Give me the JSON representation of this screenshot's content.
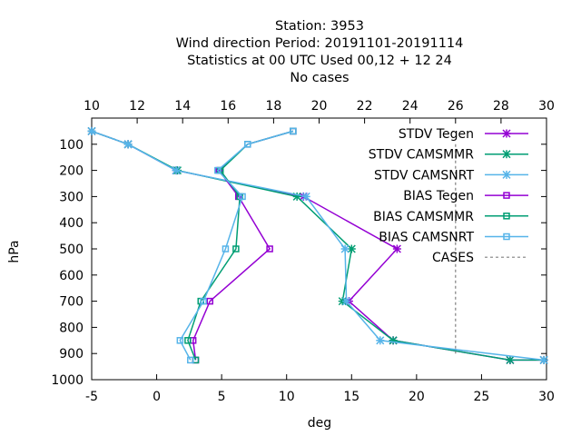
{
  "chart_data": {
    "type": "line",
    "title_lines": [
      "Station:     3953",
      "Wind direction  Period: 20191101-20191114",
      "Statistics at 00 UTC  Used  00,12  + 12 24",
      "No cases"
    ],
    "xlabel": "deg",
    "ylabel": "hPa",
    "xlim": [
      -5,
      30
    ],
    "ylim": [
      1000,
      0
    ],
    "x2lim": [
      10,
      30
    ],
    "x_ticks": [
      -5,
      0,
      5,
      10,
      15,
      20,
      25,
      30
    ],
    "x2_ticks": [
      10,
      12,
      14,
      16,
      18,
      20,
      22,
      24,
      26,
      28,
      30
    ],
    "y_ticks": [
      100,
      200,
      300,
      400,
      500,
      600,
      700,
      800,
      900,
      1000
    ],
    "grid": false,
    "legend_position": "top-right",
    "series": [
      {
        "name": "STDV Tegen",
        "color": "#9400d3",
        "marker": "star",
        "axis": "bottom",
        "points": [
          [
            -5.0,
            50
          ],
          [
            -2.2,
            100
          ],
          [
            1.5,
            200
          ],
          [
            11.3,
            300
          ],
          [
            18.5,
            500
          ],
          [
            14.8,
            700
          ],
          [
            18.2,
            850
          ],
          [
            27.2,
            925
          ],
          [
            29.8,
            925
          ]
        ]
      },
      {
        "name": "STDV CAMSMMR",
        "color": "#009e73",
        "marker": "star",
        "axis": "bottom",
        "points": [
          [
            -5.0,
            50
          ],
          [
            -2.2,
            100
          ],
          [
            1.6,
            200
          ],
          [
            10.8,
            300
          ],
          [
            15.0,
            500
          ],
          [
            14.3,
            700
          ],
          [
            18.2,
            850
          ],
          [
            27.2,
            925
          ],
          [
            29.8,
            925
          ]
        ]
      },
      {
        "name": "STDV CAMSNRT",
        "color": "#56b4e9",
        "marker": "star",
        "axis": "bottom",
        "points": [
          [
            -5.0,
            50
          ],
          [
            -2.2,
            100
          ],
          [
            1.5,
            200
          ],
          [
            11.5,
            300
          ],
          [
            14.5,
            500
          ],
          [
            14.6,
            700
          ],
          [
            17.2,
            850
          ],
          [
            29.8,
            925
          ]
        ]
      },
      {
        "name": "BIAS Tegen",
        "color": "#9400d3",
        "marker": "square",
        "axis": "bottom",
        "points": [
          [
            10.5,
            50
          ],
          [
            7.0,
            100
          ],
          [
            4.8,
            200
          ],
          [
            6.3,
            300
          ],
          [
            8.7,
            500
          ],
          [
            4.1,
            700
          ],
          [
            2.8,
            850
          ],
          [
            3.0,
            925
          ]
        ]
      },
      {
        "name": "BIAS CAMSMMR",
        "color": "#009e73",
        "marker": "square",
        "axis": "bottom",
        "points": [
          [
            10.5,
            50
          ],
          [
            7.0,
            100
          ],
          [
            4.9,
            200
          ],
          [
            6.4,
            300
          ],
          [
            6.1,
            500
          ],
          [
            3.4,
            700
          ],
          [
            2.4,
            850
          ],
          [
            3.0,
            925
          ]
        ]
      },
      {
        "name": "BIAS CAMSNRT",
        "color": "#56b4e9",
        "marker": "square",
        "axis": "bottom",
        "points": [
          [
            10.5,
            50
          ],
          [
            7.0,
            100
          ],
          [
            4.7,
            200
          ],
          [
            6.6,
            300
          ],
          [
            5.3,
            500
          ],
          [
            3.6,
            700
          ],
          [
            1.8,
            850
          ],
          [
            2.6,
            925
          ]
        ]
      },
      {
        "name": "CASES",
        "color": "#808080",
        "marker": "none",
        "dashed": true,
        "axis": "top",
        "points": [
          [
            26.0,
            100
          ],
          [
            26.0,
            200
          ],
          [
            26.0,
            300
          ],
          [
            26.0,
            400
          ],
          [
            26.0,
            500
          ],
          [
            26.0,
            600
          ],
          [
            26.0,
            700
          ],
          [
            26.0,
            800
          ],
          [
            26.0,
            900
          ]
        ]
      }
    ]
  }
}
